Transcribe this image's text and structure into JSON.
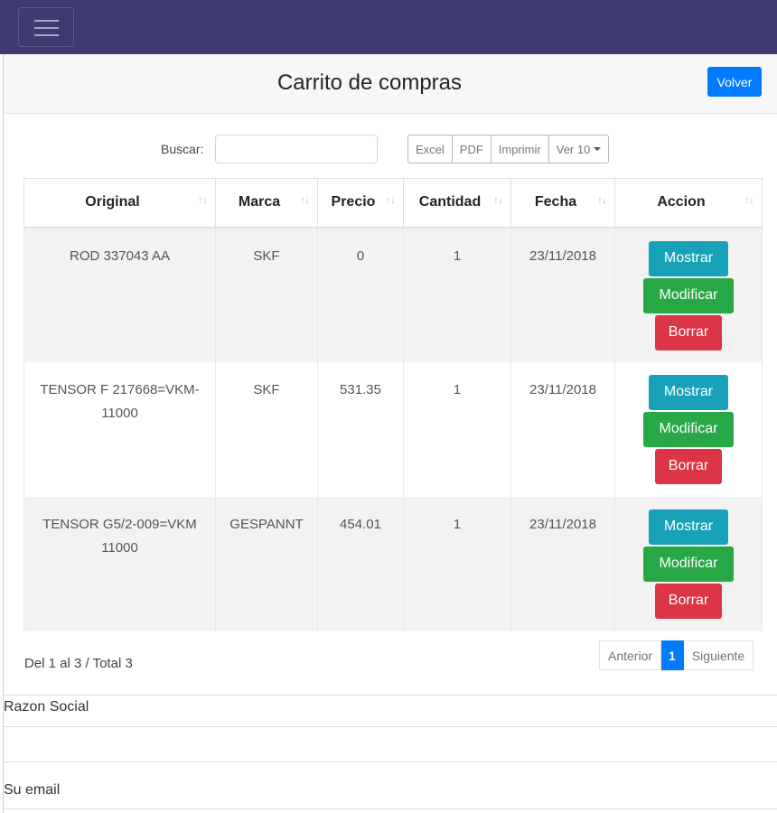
{
  "header": {
    "title": "Carrito de compras",
    "back_label": "Volver"
  },
  "search": {
    "label": "Buscar:",
    "value": "",
    "placeholder": ""
  },
  "export_buttons": {
    "excel": "Excel",
    "pdf": "PDF",
    "print": "Imprimir",
    "page_length": "Ver 10"
  },
  "table": {
    "columns": [
      "Original",
      "Marca",
      "Precio",
      "Cantidad",
      "Fecha",
      "Accion"
    ],
    "rows": [
      {
        "original": "ROD 337043 AA",
        "marca": "SKF",
        "precio": "0",
        "cantidad": "1",
        "fecha": "23/11/2018"
      },
      {
        "original": "TENSOR F 217668=VKM-11000",
        "marca": "SKF",
        "precio": "531.35",
        "cantidad": "1",
        "fecha": "23/11/2018"
      },
      {
        "original": "TENSOR G5/2-009=VKM 11000",
        "marca": "GESPANNT",
        "precio": "454.01",
        "cantidad": "1",
        "fecha": "23/11/2018"
      }
    ],
    "actions": {
      "show": "Mostrar",
      "edit": "Modificar",
      "delete": "Borrar"
    },
    "sort_icon": "↑↓"
  },
  "footer": {
    "info": "Del 1 al 3 / Total 3",
    "pagination": {
      "prev": "Anterior",
      "current": "1",
      "next": "Siguiente"
    }
  },
  "form": {
    "razon_social_label": "Razon Social",
    "email_label": "Su email"
  },
  "colors": {
    "navbar": "#3d3b70",
    "primary": "#007bff",
    "info": "#17a2b8",
    "success": "#28a745",
    "danger": "#dc3545"
  },
  "icons": {
    "menu": "hamburger-menu-icon",
    "sort": "sort-arrows-icon",
    "dropdown": "caret-down-icon"
  }
}
